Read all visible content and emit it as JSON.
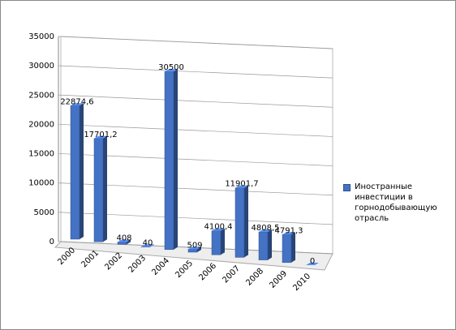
{
  "chart_data": {
    "type": "bar3d",
    "categories": [
      "2000",
      "2001",
      "2002",
      "2003",
      "2004",
      "2005",
      "2006",
      "2007",
      "2008",
      "2009",
      "2010"
    ],
    "series": [
      {
        "name": "Иностранные инвестиции в горнодобывающую отрасль",
        "color": "#4472c4",
        "values": [
          22874.6,
          17701.2,
          408,
          40,
          30500,
          509,
          4100.4,
          11901.7,
          4808.5,
          4791.3,
          0
        ],
        "value_labels": [
          "22874,6",
          "17701,2",
          "408",
          "40",
          "30500",
          "509",
          "4100,4",
          "11901,7",
          "4808,5",
          "4791,3",
          "0"
        ]
      }
    ],
    "ylim": [
      0,
      35000
    ],
    "yticks": [
      0,
      5000,
      10000,
      15000,
      20000,
      25000,
      30000,
      35000
    ],
    "grid": true,
    "legend": "right"
  }
}
